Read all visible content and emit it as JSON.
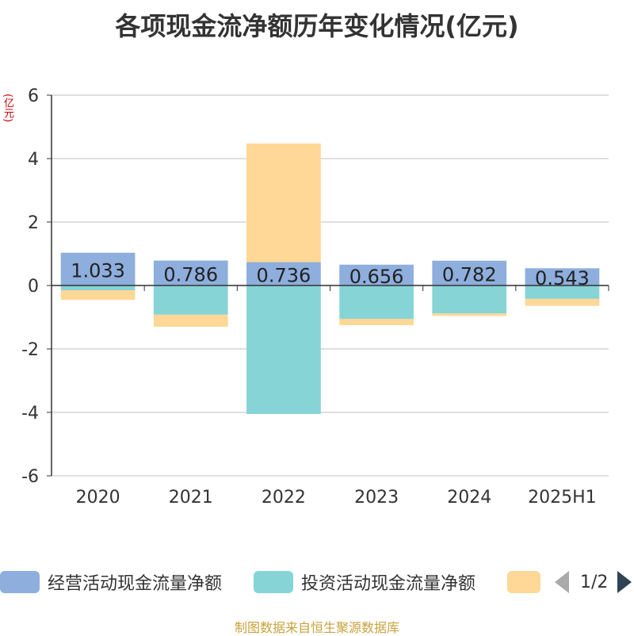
{
  "title": "各项现金流净额历年变化情况(亿元)",
  "unit_label": "(亿元)",
  "source": "制图数据来自恒生聚源数据库",
  "pager": {
    "text": "1/2"
  },
  "colors": {
    "operating": "#8eaedd",
    "investing": "#86d4d6",
    "financing": "#ffd796",
    "axis": "#333333",
    "grid": "#cccccc",
    "label": "#222222"
  },
  "chart_data": {
    "type": "bar",
    "stacked": true,
    "categories": [
      "2020",
      "2021",
      "2022",
      "2023",
      "2024",
      "2025H1"
    ],
    "series": [
      {
        "name": "经营活动现金流量净额",
        "color_key": "operating",
        "values": [
          1.033,
          0.786,
          0.736,
          0.656,
          0.782,
          0.543
        ],
        "show_labels": true
      },
      {
        "name": "投资活动现金流量净额",
        "color_key": "investing",
        "values": [
          -0.15,
          -0.92,
          -4.05,
          -1.05,
          -0.88,
          -0.42
        ],
        "show_labels": false
      },
      {
        "name": "",
        "color_key": "financing",
        "values": [
          -0.3,
          -0.38,
          3.74,
          -0.2,
          -0.08,
          -0.22
        ],
        "show_labels": false
      }
    ],
    "ylim": [
      -6,
      6
    ],
    "yticks": [
      -6,
      -4,
      -2,
      0,
      2,
      4,
      6
    ],
    "xlabel": "",
    "ylabel": "(亿元)",
    "grid": true,
    "legend_position": "bottom"
  }
}
